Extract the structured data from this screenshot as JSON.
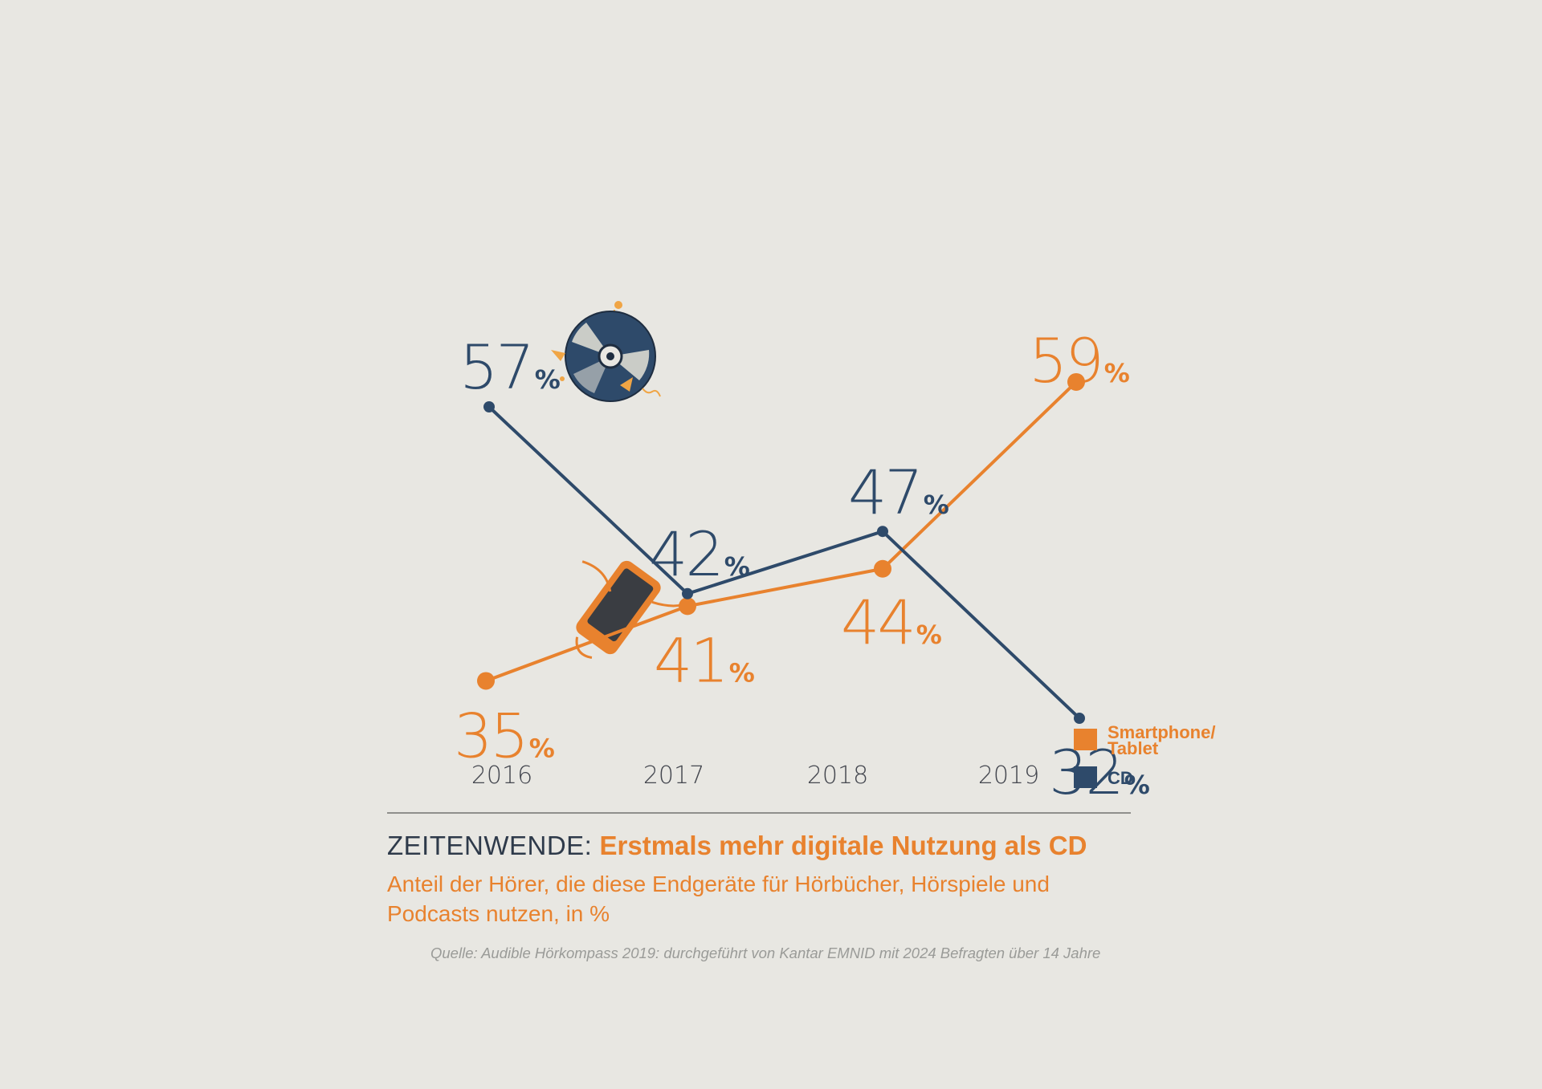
{
  "chart_data": {
    "type": "line",
    "categories": [
      "2016",
      "2017",
      "2018",
      "2019"
    ],
    "series": [
      {
        "name": "Smartphone/ Tablet",
        "color": "#e8822e",
        "values": [
          35,
          41,
          44,
          59
        ]
      },
      {
        "name": "CD",
        "color": "#2e4a6a",
        "values": [
          57,
          42,
          47,
          32
        ]
      }
    ],
    "value_suffix": "%",
    "legend": {
      "placement": "right",
      "items": [
        {
          "line1": "Smartphone/",
          "line2": "Tablet",
          "color": "#e8822e"
        },
        {
          "line1": "CD",
          "line2": "",
          "color": "#2e4a6a"
        }
      ]
    },
    "grid": false,
    "icons": [
      "cd-icon",
      "smartphone-icon"
    ]
  },
  "caption": {
    "headline_light": "ZEITENWENDE:",
    "headline_bold": "Erstmals mehr digitale Nutzung als CD",
    "subtitle": "Anteil der Hörer, die diese Endgeräte für Hörbücher, Hörspiele und Podcasts nutzen, in %",
    "source": "Quelle: Audible Hörkompass 2019: durchgeführt von Kantar EMNID mit 2024 Befragten über 14 Jahre"
  }
}
